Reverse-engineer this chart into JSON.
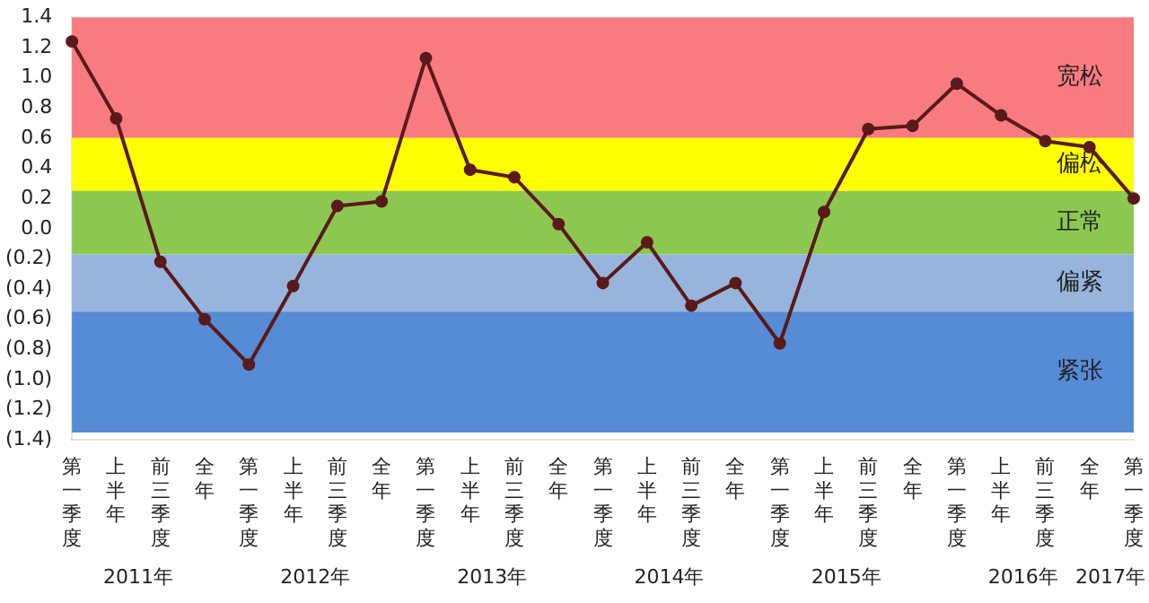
{
  "chart_data": {
    "type": "line",
    "categories": [
      "第一季度",
      "上半年",
      "前三季度",
      "全年",
      "第一季度",
      "上半年",
      "前三季度",
      "全年",
      "第一季度",
      "上半年",
      "前三季度",
      "全年",
      "第一季度",
      "上半年",
      "前三季度",
      "全年",
      "第一季度",
      "上半年",
      "前三季度",
      "全年",
      "第一季度",
      "上半年",
      "前三季度",
      "全年",
      "第一季度"
    ],
    "series": [
      {
        "color": "#5a1a1a",
        "values": [
          1.24,
          0.73,
          -0.22,
          -0.6,
          -0.9,
          -0.38,
          0.15,
          0.18,
          1.13,
          0.39,
          0.34,
          0.03,
          -0.36,
          -0.09,
          -0.51,
          -0.36,
          -0.76,
          0.11,
          0.66,
          0.68,
          0.96,
          0.75,
          0.58,
          0.54,
          0.2
        ]
      }
    ],
    "ylim": [
      -1.4,
      1.4
    ],
    "yticks": [
      {
        "value": -1.4,
        "label": "(1.4)"
      },
      {
        "value": -1.2,
        "label": "(1.2)"
      },
      {
        "value": -1,
        "label": "(1.0)"
      },
      {
        "value": -0.8,
        "label": "(0.8)"
      },
      {
        "value": -0.6,
        "label": "(0.6)"
      },
      {
        "value": -0.4,
        "label": "(0.4)"
      },
      {
        "value": -0.2,
        "label": "(0.2)"
      },
      {
        "value": 0,
        "label": "0.0"
      },
      {
        "value": 0.2,
        "label": "0.2"
      },
      {
        "value": 0.4,
        "label": "0.4"
      },
      {
        "value": 0.6,
        "label": "0.6"
      },
      {
        "value": 0.8,
        "label": "0.8"
      },
      {
        "value": 1,
        "label": "1.0"
      },
      {
        "value": 1.2,
        "label": "1.2"
      },
      {
        "value": 1.4,
        "label": "1.4"
      }
    ],
    "bands": [
      {
        "axis": "y",
        "from": 0.6,
        "to": 1.4,
        "label": "宽松",
        "color": "#f77b7f"
      },
      {
        "axis": "y",
        "from": 0.25,
        "to": 0.6,
        "label": "偏松",
        "color": "#ffff00"
      },
      {
        "axis": "y",
        "from": -0.17,
        "to": 0.25,
        "label": "正常",
        "color": "#8cc850"
      },
      {
        "axis": "y",
        "from": -0.55,
        "to": -0.17,
        "label": "偏紧",
        "color": "#96b4dc"
      },
      {
        "axis": "y",
        "from": -1.35,
        "to": -0.55,
        "label": "紧张",
        "color": "#568bd6"
      }
    ],
    "annotations": [
      "2011年",
      "2012年",
      "2013年",
      "2014年",
      "2015年",
      "2016年",
      "2017年"
    ],
    "grid": false,
    "legend": false,
    "marker": "circle",
    "line_style": "solid"
  }
}
